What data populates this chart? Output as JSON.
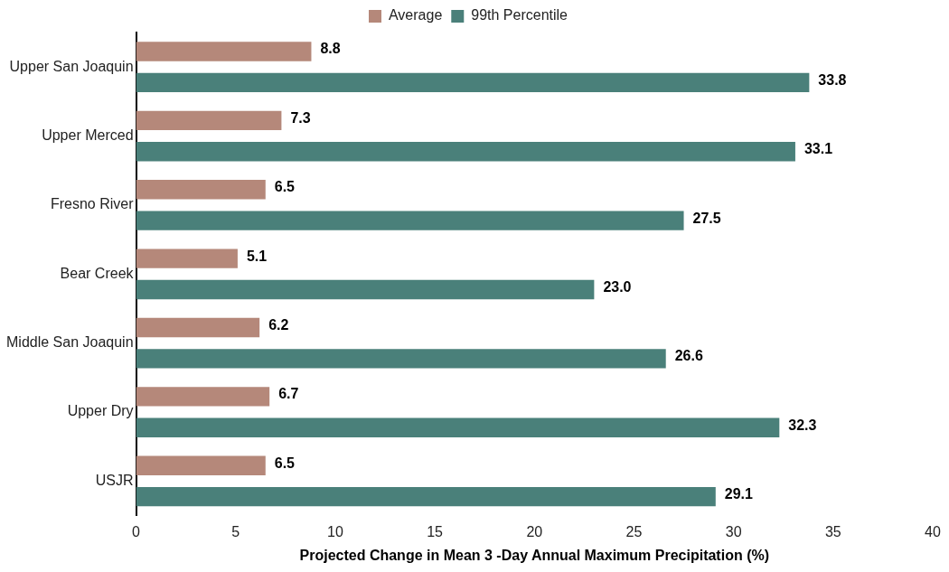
{
  "chart_data": {
    "type": "bar",
    "orientation": "horizontal",
    "xlabel": "Projected Change in Mean 3 -Day Annual Maximum Precipitation (%)",
    "categories": [
      "Upper San Joaquin",
      "Upper Merced",
      "Fresno River",
      "Bear Creek",
      "Middle San Joaquin",
      "Upper Dry",
      "USJR"
    ],
    "series": [
      {
        "name": "Average",
        "color": "#b5887a",
        "values": [
          8.8,
          7.3,
          6.5,
          5.1,
          6.2,
          6.7,
          6.5
        ],
        "value_labels": [
          "8.8",
          "7.3",
          "6.5",
          "5.1",
          "6.2",
          "6.7",
          "6.5"
        ]
      },
      {
        "name": "99th Percentile",
        "color": "#4a807a",
        "values": [
          33.8,
          33.1,
          27.5,
          23.0,
          26.6,
          32.3,
          29.1
        ],
        "value_labels": [
          "33.8",
          "33.1",
          "27.5",
          "23.0",
          "26.6",
          "32.3",
          "29.1"
        ]
      }
    ],
    "xlim": [
      0,
      40
    ],
    "xticks": [
      0,
      5,
      10,
      15,
      20,
      25,
      30,
      35,
      40
    ],
    "grid": false,
    "legend": "top"
  }
}
